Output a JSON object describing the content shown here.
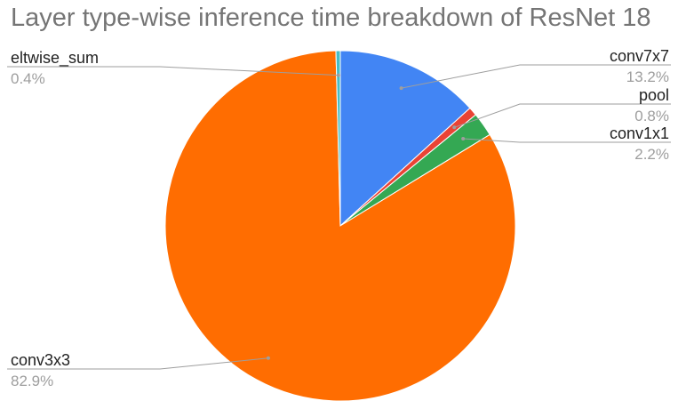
{
  "chart_data": {
    "type": "pie",
    "title": "Layer type-wise inference time breakdown of ResNet 18",
    "categories": [
      "conv7x7",
      "pool",
      "conv1x1",
      "conv3x3",
      "eltwise_sum"
    ],
    "values": [
      13.2,
      0.8,
      2.2,
      82.9,
      0.4
    ],
    "labels": [
      "13.2%",
      "0.8%",
      "2.2%",
      "82.9%",
      "0.4%"
    ],
    "colors": [
      "#4285f4",
      "#ea4335",
      "#34a853",
      "#ff6d01",
      "#46bdc6"
    ],
    "start_angle_deg": 0,
    "direction": "clockwise",
    "legend": "labeled"
  }
}
